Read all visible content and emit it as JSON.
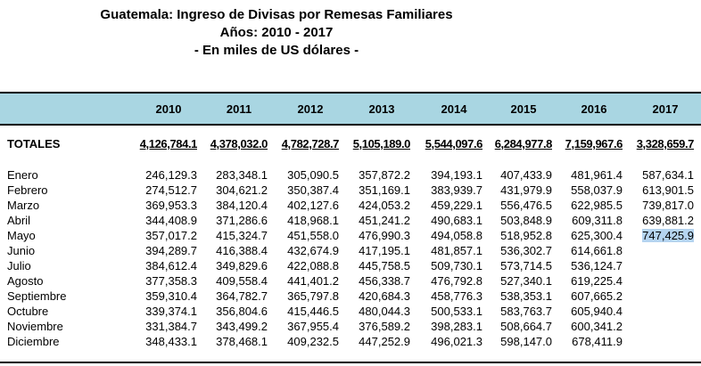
{
  "title": {
    "line1": "Guatemala: Ingreso de Divisas por Remesas Familiares",
    "line2": "Años: 2010 - 2017",
    "line3": "- En miles de US dólares -"
  },
  "years": [
    "2010",
    "2011",
    "2012",
    "2013",
    "2014",
    "2015",
    "2016",
    "2017"
  ],
  "totals": {
    "label": "TOTALES",
    "values": [
      "4,126,784.1",
      "4,378,032.0",
      "4,782,728.7",
      "5,105,189.0",
      "5,544,097.6",
      "6,284,977.8",
      "7,159,967.6",
      "3,328,659.7"
    ]
  },
  "months": [
    {
      "label": "Enero",
      "values": [
        "246,129.3",
        "283,348.1",
        "305,090.5",
        "357,872.2",
        "394,193.1",
        "407,433.9",
        "481,961.4",
        "587,634.1"
      ]
    },
    {
      "label": "Febrero",
      "values": [
        "274,512.7",
        "304,621.2",
        "350,387.4",
        "351,169.1",
        "383,939.7",
        "431,979.9",
        "558,037.9",
        "613,901.5"
      ]
    },
    {
      "label": "Marzo",
      "values": [
        "369,953.3",
        "384,120.4",
        "402,127.6",
        "424,053.2",
        "459,229.1",
        "556,476.5",
        "622,985.5",
        "739,817.0"
      ]
    },
    {
      "label": "Abril",
      "values": [
        "344,408.9",
        "371,286.6",
        "418,968.1",
        "451,241.2",
        "490,683.1",
        "503,848.9",
        "609,311.8",
        "639,881.2"
      ]
    },
    {
      "label": "Mayo",
      "values": [
        "357,017.2",
        "415,324.7",
        "451,558.0",
        "476,990.3",
        "494,058.8",
        "518,952.8",
        "625,300.4",
        "747,425.9"
      ]
    },
    {
      "label": "Junio",
      "values": [
        "394,289.7",
        "416,388.4",
        "432,674.9",
        "417,195.1",
        "481,857.1",
        "536,302.7",
        "614,661.8",
        ""
      ]
    },
    {
      "label": "Julio",
      "values": [
        "384,612.4",
        "349,829.6",
        "422,088.8",
        "445,758.5",
        "509,730.1",
        "573,714.5",
        "536,124.7",
        ""
      ]
    },
    {
      "label": "Agosto",
      "values": [
        "377,358.3",
        "409,558.4",
        "441,401.2",
        "456,338.7",
        "476,792.8",
        "527,340.1",
        "619,225.4",
        ""
      ]
    },
    {
      "label": "Septiembre",
      "values": [
        "359,310.4",
        "364,782.7",
        "365,797.8",
        "420,684.3",
        "458,776.3",
        "538,353.1",
        "607,665.2",
        ""
      ]
    },
    {
      "label": "Octubre",
      "values": [
        "339,374.1",
        "356,804.6",
        "415,446.5",
        "480,044.3",
        "500,533.1",
        "583,763.7",
        "605,940.4",
        ""
      ]
    },
    {
      "label": "Noviembre",
      "values": [
        "331,384.7",
        "343,499.2",
        "367,955.4",
        "376,589.2",
        "398,283.1",
        "508,664.7",
        "600,341.2",
        ""
      ]
    },
    {
      "label": "Diciembre",
      "values": [
        "348,433.1",
        "378,468.1",
        "409,232.5",
        "447,252.9",
        "496,021.3",
        "598,147.0",
        "678,411.9",
        ""
      ]
    }
  ],
  "selected_cell": {
    "month": "Mayo",
    "year": "2017"
  },
  "colors": {
    "header_band": "#a9d6e2",
    "selection": "#b5d4f0"
  }
}
